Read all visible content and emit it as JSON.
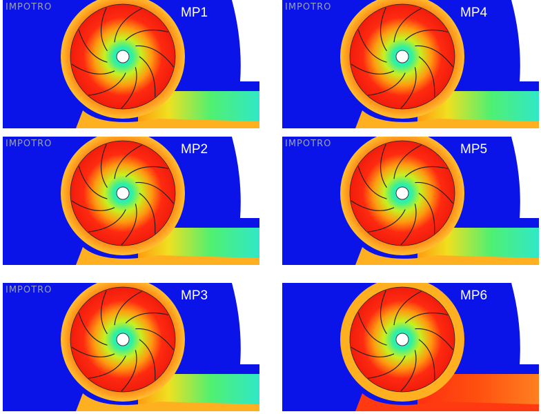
{
  "panels": [
    {
      "label": "MP1",
      "logo": "IMPOTRO"
    },
    {
      "label": "MP4",
      "logo": "IMPOTRO"
    },
    {
      "label": "MP2",
      "logo": "IMPOTRO"
    },
    {
      "label": "MP5",
      "logo": "IMPOTRO"
    },
    {
      "label": "MP3",
      "logo": "IMPOTRO"
    },
    {
      "label": "MP6"
    }
  ]
}
